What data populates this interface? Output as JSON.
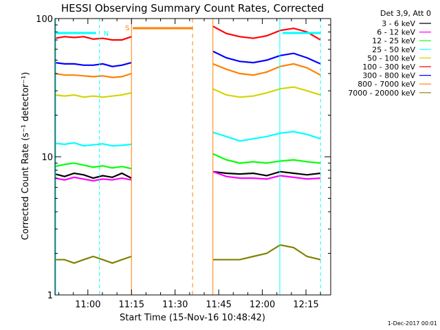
{
  "chart_data": {
    "type": "line",
    "title": "HESSI Observing Summary Count Rates, Corrected",
    "xlabel": "Start Time (15-Nov-16 10:48:42)",
    "ylabel": "Corrected Count Rate (s⁻¹ detector⁻¹)",
    "yscale": "log",
    "ylim": [
      1,
      100
    ],
    "xlim": [
      "10:48:42",
      "12:23:30"
    ],
    "x_ticks": [
      "11:00",
      "11:15",
      "11:30",
      "11:45",
      "12:00",
      "12:15"
    ],
    "y_ticks": [
      "1",
      "10",
      "100"
    ],
    "legend_title": "Det 3,9, Att 0",
    "legend_position": "right",
    "gap": [
      "11:15:00",
      "11:43:00"
    ],
    "series": [
      {
        "name": "3 - 6 keV",
        "color": "#000000",
        "segments": [
          {
            "from": "10:48:42",
            "to": "11:15:00",
            "values": [
              7.5,
              7.2,
              7.6,
              7.4,
              7.0,
              7.3,
              7.1,
              7.6,
              7.0
            ]
          },
          {
            "from": "11:43:00",
            "to": "12:20:00",
            "values": [
              7.8,
              7.6,
              7.5,
              7.6,
              7.3,
              7.8,
              7.6,
              7.4,
              7.6
            ]
          }
        ]
      },
      {
        "name": "6 - 12 keV",
        "color": "#ff00ff",
        "segments": [
          {
            "from": "10:48:42",
            "to": "11:15:00",
            "values": [
              7.0,
              6.8,
              7.1,
              6.9,
              6.7,
              6.9,
              6.8,
              7.0,
              6.8
            ]
          },
          {
            "from": "11:43:00",
            "to": "12:20:00",
            "values": [
              7.8,
              7.2,
              7.0,
              7.0,
              6.9,
              7.3,
              7.1,
              6.9,
              7.0
            ]
          }
        ]
      },
      {
        "name": "12 - 25 keV",
        "color": "#00ff00",
        "segments": [
          {
            "from": "10:48:42",
            "to": "11:15:00",
            "values": [
              8.5,
              8.8,
              9.0,
              8.7,
              8.4,
              8.6,
              8.3,
              8.5,
              8.2
            ]
          },
          {
            "from": "11:43:00",
            "to": "12:20:00",
            "values": [
              10.5,
              9.5,
              9.0,
              9.2,
              9.0,
              9.3,
              9.5,
              9.2,
              9.0
            ]
          }
        ]
      },
      {
        "name": "25 - 50 keV",
        "color": "#00ffff",
        "segments": [
          {
            "from": "10:48:42",
            "to": "11:15:00",
            "values": [
              12.5,
              12.3,
              12.6,
              12.0,
              12.2,
              12.4,
              12.0,
              12.1,
              12.3
            ]
          },
          {
            "from": "11:43:00",
            "to": "12:20:00",
            "values": [
              15.0,
              14.0,
              13.0,
              13.5,
              14.0,
              14.8,
              15.2,
              14.5,
              13.5
            ]
          }
        ]
      },
      {
        "name": "50 - 100 keV",
        "color": "#d4d400",
        "segments": [
          {
            "from": "10:48:42",
            "to": "11:15:00",
            "values": [
              28,
              27.5,
              28,
              27,
              27.5,
              27,
              27.5,
              28,
              29
            ]
          },
          {
            "from": "11:43:00",
            "to": "12:20:00",
            "values": [
              31,
              28,
              27,
              27.5,
              29,
              31,
              32,
              30,
              28
            ]
          }
        ]
      },
      {
        "name": "100 - 300 keV",
        "color": "#ff0000",
        "segments": [
          {
            "from": "10:48:42",
            "to": "11:15:00",
            "values": [
              72,
              74,
              73,
              74,
              71,
              72,
              70,
              70,
              74
            ]
          },
          {
            "from": "11:43:00",
            "to": "12:20:00",
            "values": [
              88,
              78,
              74,
              72,
              75,
              82,
              85,
              80,
              70
            ]
          }
        ]
      },
      {
        "name": "300 - 800 keV",
        "color": "#0000ff",
        "segments": [
          {
            "from": "10:48:42",
            "to": "11:15:00",
            "values": [
              48,
              47,
              47,
              46,
              46,
              47,
              45,
              46,
              48
            ]
          },
          {
            "from": "11:43:00",
            "to": "12:20:00",
            "values": [
              58,
              52,
              49,
              48,
              50,
              54,
              56,
              52,
              47
            ]
          }
        ]
      },
      {
        "name": "800 - 7000 keV",
        "color": "#ff8000",
        "segments": [
          {
            "from": "10:48:42",
            "to": "11:15:00",
            "values": [
              40,
              39,
              39,
              38.5,
              38,
              38.5,
              37.5,
              38,
              40
            ]
          },
          {
            "from": "11:43:00",
            "to": "12:20:00",
            "values": [
              47,
              43,
              40,
              39,
              41,
              45,
              47,
              44,
              39
            ]
          }
        ]
      },
      {
        "name": "7000 - 20000 keV",
        "color": "#808000",
        "segments": [
          {
            "from": "10:48:42",
            "to": "11:15:00",
            "values": [
              1.8,
              1.8,
              1.7,
              1.8,
              1.9,
              1.8,
              1.7,
              1.8,
              1.9
            ]
          },
          {
            "from": "11:43:00",
            "to": "12:20:00",
            "values": [
              1.8,
              1.8,
              1.8,
              1.9,
              2.0,
              2.3,
              2.2,
              1.9,
              1.8
            ]
          }
        ]
      }
    ],
    "flag_markers": [
      {
        "label": "N",
        "color": "#00ffff",
        "time": "11:04:00"
      },
      {
        "label": "S",
        "color": "#ff8000",
        "time": "11:14:00"
      }
    ]
  },
  "footer_date": "1-Dec-2017 00:01"
}
